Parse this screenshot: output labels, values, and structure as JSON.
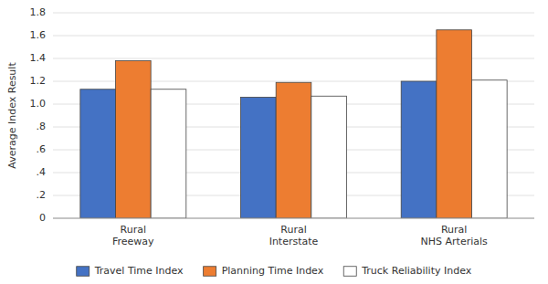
{
  "chart_data": {
    "type": "bar",
    "ylabel": "Average Index Result",
    "categories": [
      "Rural\nFreeway",
      "Rural\nInterstate",
      "Rural\nNHS Arterials"
    ],
    "series": [
      {
        "name": "Travel Time Index",
        "color": "#4472C4",
        "values": [
          1.13,
          1.06,
          1.2
        ]
      },
      {
        "name": "Planning Time Index",
        "color": "#ED7D31",
        "values": [
          1.38,
          1.19,
          1.65
        ]
      },
      {
        "name": "Truck Reliability Index",
        "color": "#ffffff",
        "values": [
          1.13,
          1.07,
          1.21
        ]
      }
    ],
    "ylim": [
      0,
      1.8
    ],
    "yticks": [
      0,
      {
        "value": 0.2,
        "label": ".2"
      },
      {
        "value": 0.4,
        "label": ".4"
      },
      {
        "value": 0.6,
        "label": ".6"
      },
      {
        "value": 0.8,
        "label": ".8"
      },
      {
        "value": 1.0,
        "label": "1.0"
      },
      1.2,
      1.4,
      1.6,
      1.8
    ],
    "grid": true,
    "legend": "bottom"
  }
}
